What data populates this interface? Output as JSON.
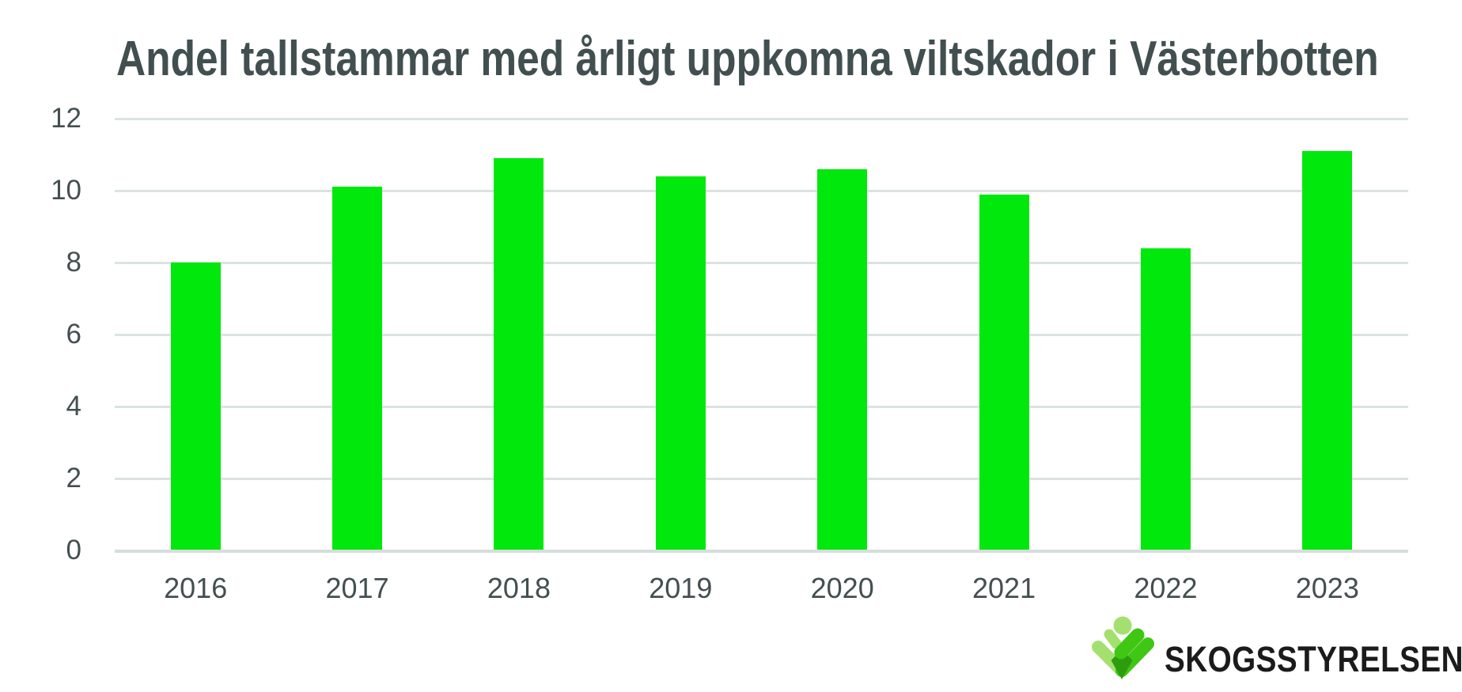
{
  "title": "Andel tallstammar med årligt uppkomna viltskador i Västerbotten",
  "chart_data": {
    "type": "bar",
    "title": "Andel tallstammar med årligt uppkomna viltskador i Västerbotten",
    "categories": [
      "2016",
      "2017",
      "2018",
      "2019",
      "2020",
      "2021",
      "2022",
      "2023"
    ],
    "values": [
      8.0,
      10.1,
      10.9,
      10.4,
      10.6,
      9.9,
      8.4,
      11.1
    ],
    "xlabel": "",
    "ylabel": "",
    "ylim": [
      0,
      12
    ],
    "y_ticks": [
      0,
      2,
      4,
      6,
      8,
      10,
      12
    ],
    "grid": true,
    "legend": "none",
    "bar_color": "#00E80C"
  },
  "colors": {
    "background": "#FFFFFF",
    "title_text": "#424F50",
    "tick_text": "#434F50",
    "gridline": "#DCE2E2",
    "axis_line": "#D7DDDD",
    "bar": "#00E80C"
  },
  "logo": {
    "text": "SKOGSSTYRELSEN",
    "icon": "skogsstyrelsen-tree-person-icon",
    "colors": {
      "light_green": "#A4E070",
      "green": "#3FC714",
      "dark_green": "#2D9D0E",
      "text": "#1B1B1B"
    }
  }
}
